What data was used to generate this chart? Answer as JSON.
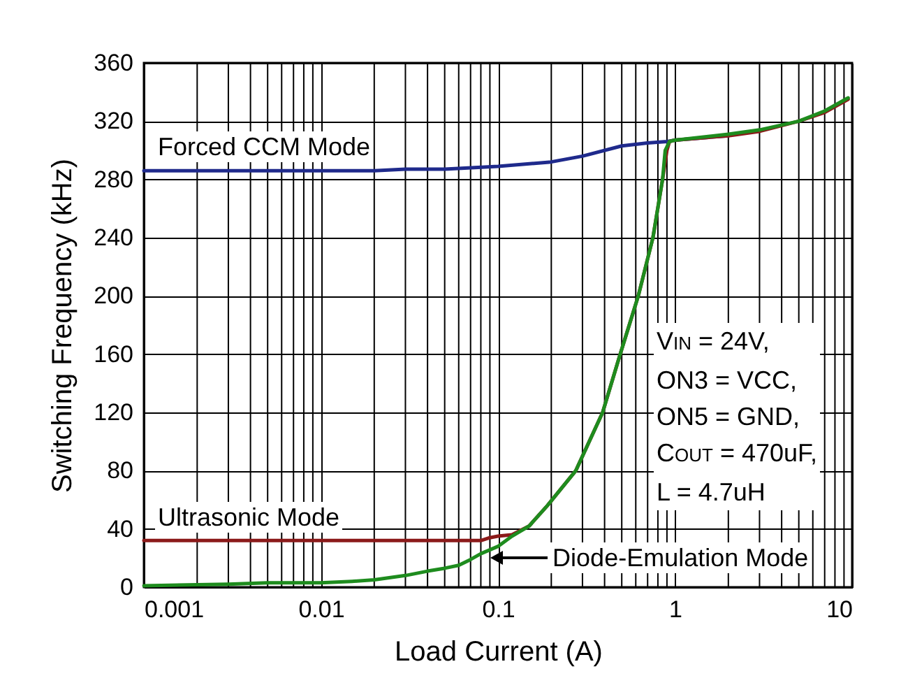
{
  "chart_data": {
    "type": "line",
    "xlabel": "Load Current (A)",
    "ylabel": "Switching Frequency (kHz)",
    "log": "x",
    "grid": true,
    "xlim": [
      0.001,
      10
    ],
    "xticks": [
      0.001,
      0.01,
      0.1,
      1,
      10
    ],
    "ylim": [
      0,
      360
    ],
    "yticks": [
      0,
      40,
      80,
      120,
      160,
      200,
      240,
      280,
      320,
      360
    ],
    "series": [
      {
        "name": "Forced CCM Mode",
        "color": "#1f2a8c",
        "x": [
          0.001,
          0.01,
          0.02,
          0.03,
          0.05,
          0.1,
          0.2,
          0.3,
          0.5,
          0.7,
          0.9,
          1,
          2
        ],
        "values": [
          286,
          286,
          286,
          287,
          287,
          289,
          292,
          296,
          303,
          305,
          306,
          307,
          310
        ]
      },
      {
        "name": "Ultrasonic Mode",
        "color": "#8b1a1a",
        "x": [
          0.001,
          0.01,
          0.05,
          0.08,
          0.09,
          0.1,
          0.12,
          0.15,
          0.19,
          0.275,
          0.39,
          0.49,
          0.62,
          0.75,
          0.85,
          0.9,
          0.93,
          1,
          2,
          3,
          5,
          7,
          9.5
        ],
        "values": [
          32,
          32,
          32,
          32,
          34,
          35,
          36,
          42,
          56,
          80,
          120,
          160,
          200,
          240,
          280,
          300,
          306,
          307,
          310,
          313,
          320,
          326,
          335
        ]
      },
      {
        "color": "#1e8c1e",
        "x": [
          0.001,
          0.003,
          0.005,
          0.01,
          0.015,
          0.02,
          0.03,
          0.04,
          0.05,
          0.06,
          0.07,
          0.08,
          0.1,
          0.12,
          0.15,
          0.19,
          0.275,
          0.39,
          0.49,
          0.62,
          0.75,
          0.85,
          0.88,
          0.93,
          1,
          2,
          3,
          5,
          7,
          9.5
        ],
        "values": [
          1,
          2,
          3,
          3,
          4,
          5,
          8,
          11,
          13,
          15,
          19,
          23,
          28,
          35,
          42,
          56,
          80,
          120,
          160,
          200,
          240,
          280,
          300,
          306,
          307,
          311,
          314,
          320,
          327,
          336
        ]
      }
    ],
    "annotations": [
      {
        "text": "Diode-Emulation Mode",
        "x": 0.085,
        "y": 20
      },
      "V$_{IN}$ = 24V,\nON3 = VCC,\nON5 = GND,\nC$_{OUT}$ = 470uF,\nL = 4.7uH"
    ]
  }
}
